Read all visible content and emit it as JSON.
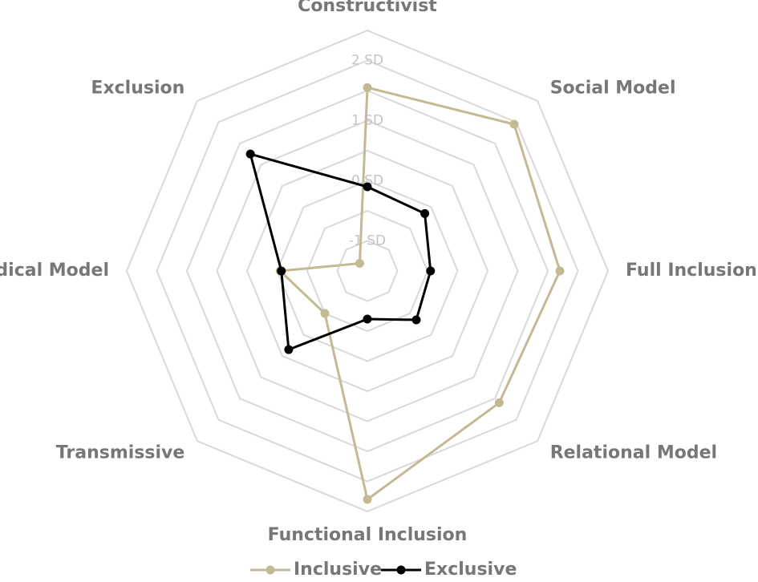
{
  "chart_data": {
    "type": "radar",
    "axes": [
      "Constructivist",
      "Social Model",
      "Full Inclusion",
      "Relational Model",
      "Functional Inclusion",
      "Transmissive",
      "Medical Model",
      "Exclusion"
    ],
    "ticks": [
      {
        "value": -1,
        "label": "-1 SD"
      },
      {
        "value": 0,
        "label": "0 SD"
      },
      {
        "value": 1,
        "label": "1 SD"
      },
      {
        "value": 2,
        "label": "2 SD"
      }
    ],
    "rings": [
      -1.5,
      -1,
      -0.5,
      0,
      0.5,
      1,
      1.5,
      2,
      2.5
    ],
    "range": [
      -1.5,
      2.5
    ],
    "series": [
      {
        "name": "Inclusive",
        "color": "#c3b993",
        "values": [
          1.55,
          1.95,
          1.7,
          1.6,
          2.3,
          -0.5,
          -0.05,
          -1.32
        ]
      },
      {
        "name": "Exclusive",
        "color": "#000000",
        "values": [
          -0.1,
          -0.15,
          -0.45,
          -0.35,
          -0.7,
          0.35,
          -0.07,
          1.25
        ]
      }
    ],
    "legend": {
      "position": "bottom"
    }
  }
}
